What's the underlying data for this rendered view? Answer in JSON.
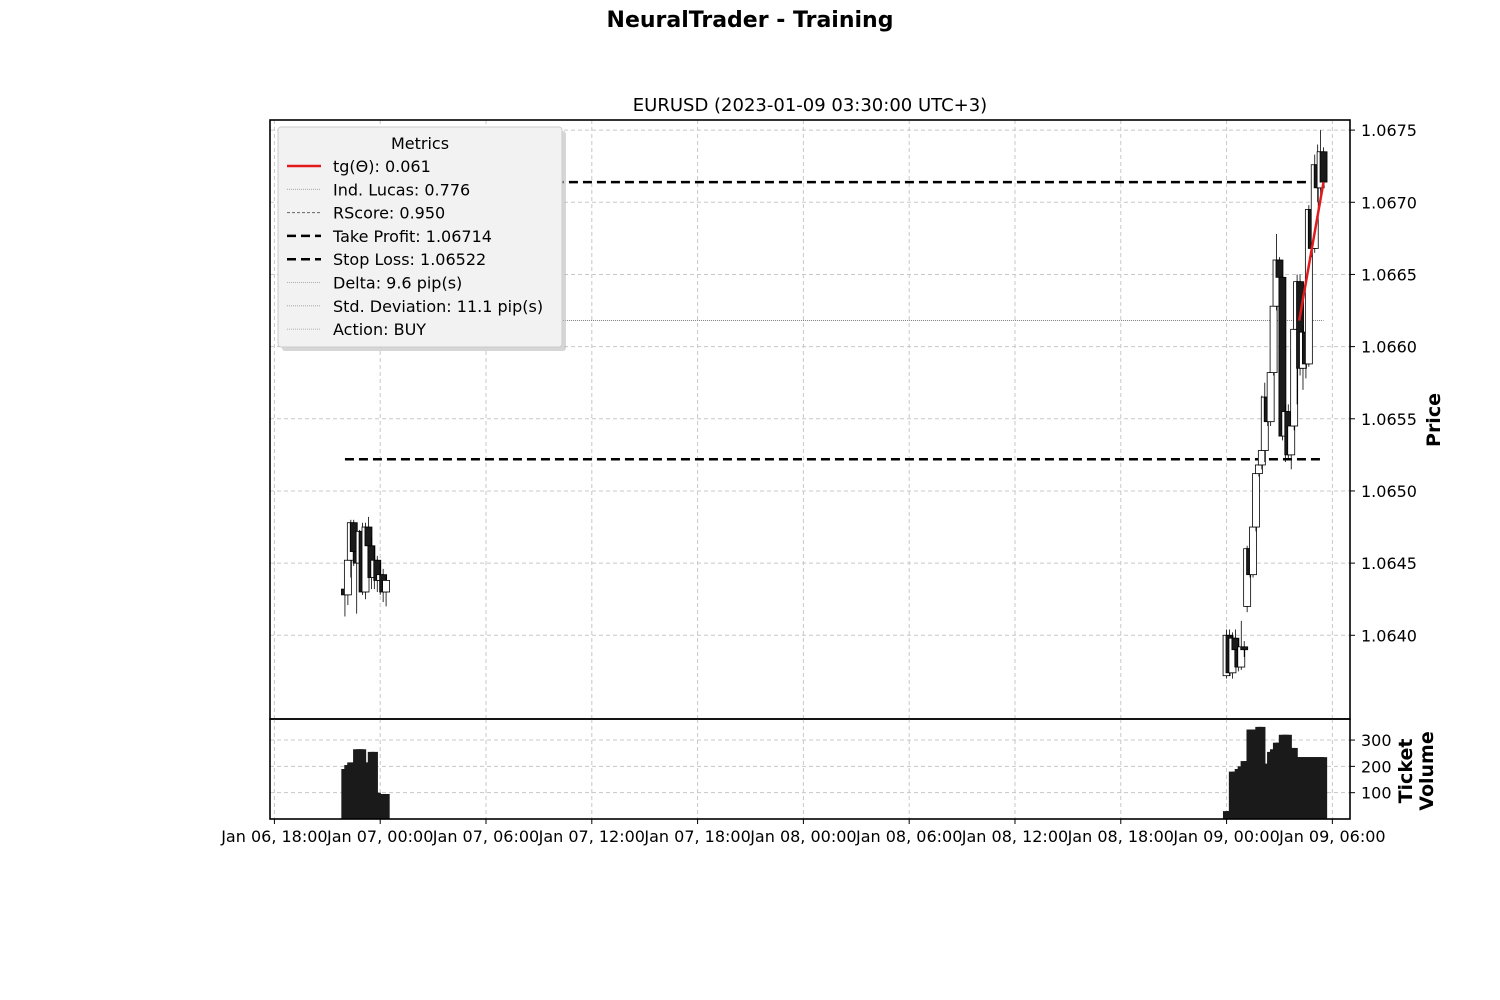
{
  "figure": {
    "suptitle": "NeuralTrader - Training",
    "title": "EURUSD (2023-01-09 03:30:00 UTC+3)"
  },
  "legend": {
    "title": "Metrics",
    "entries": [
      {
        "label": "tg(Θ): 0.061",
        "style": "solid",
        "color": "#e31a1c",
        "width": 2.5
      },
      {
        "label": "Ind. Lucas: 0.776",
        "style": "dotted",
        "color": "#999999",
        "width": 0.8
      },
      {
        "label": "RScore: 0.950",
        "style": "dashed-fine",
        "color": "#666666",
        "width": 1
      },
      {
        "label": "Take Profit: 1.06714",
        "style": "dashed",
        "color": "#000000",
        "width": 2.5
      },
      {
        "label": "Stop Loss: 1.06522",
        "style": "dashed",
        "color": "#000000",
        "width": 2.5
      },
      {
        "label": "Delta: 9.6 pip(s)",
        "style": "dotted",
        "color": "#999999",
        "width": 0.8
      },
      {
        "label": "Std. Deviation: 11.1 pip(s)",
        "style": "dotted",
        "color": "#999999",
        "width": 0.8
      },
      {
        "label": "Action: BUY",
        "style": "dotted",
        "color": "#999999",
        "width": 0.8
      }
    ]
  },
  "chart_data": [
    {
      "type": "candlestick",
      "ylabel": "Price",
      "xlim": [
        "2023-01-06 17:45",
        "2023-01-09 07:00"
      ],
      "ylim": [
        1.06342,
        1.06757
      ],
      "yticks": [
        "1.0640",
        "1.0645",
        "1.0650",
        "1.0655",
        "1.0660",
        "1.0665",
        "1.0670",
        "1.0675"
      ],
      "grid": true,
      "colors": {
        "up": "#ffffff",
        "down": "#1a1a1a",
        "edge": "#000000"
      },
      "hlines": [
        {
          "name": "Take Profit",
          "value": 1.06714,
          "style": "dashed",
          "from": "2023-01-06 22:00",
          "to": "2023-01-09 05:30"
        },
        {
          "name": "Stop Loss",
          "value": 1.06522,
          "style": "dashed",
          "from": "2023-01-06 22:00",
          "to": "2023-01-09 05:30"
        },
        {
          "name": "Delta",
          "value": 1.06618,
          "style": "dotted",
          "from": "2023-01-06 22:00",
          "to": "2023-01-09 05:30"
        }
      ],
      "trend_line": {
        "name": "tg(Θ)",
        "color": "#e31a1c",
        "points": [
          [
            "2023-01-09 04:07",
            1.06618
          ],
          [
            "2023-01-09 05:30",
            1.06714
          ]
        ]
      },
      "candles": [
        [
          "2023-01-06 22:00",
          1.06432,
          1.06448,
          1.06413,
          1.06428
        ],
        [
          "2023-01-06 22:10",
          1.06428,
          1.06462,
          1.06421,
          1.06452
        ],
        [
          "2023-01-06 22:20",
          1.06452,
          1.0648,
          1.0644,
          1.06478
        ],
        [
          "2023-01-06 22:30",
          1.06478,
          1.0648,
          1.06448,
          1.06458
        ],
        [
          "2023-01-06 22:40",
          1.06458,
          1.0647,
          1.06415,
          1.0645
        ],
        [
          "2023-01-06 22:50",
          1.0645,
          1.06473,
          1.06444,
          1.06472
        ],
        [
          "2023-01-06 23:00",
          1.06472,
          1.06478,
          1.06428,
          1.0643
        ],
        [
          "2023-01-06 23:10",
          1.0643,
          1.06478,
          1.06425,
          1.06475
        ],
        [
          "2023-01-06 23:20",
          1.06475,
          1.06482,
          1.06455,
          1.06462
        ],
        [
          "2023-01-06 23:30",
          1.06462,
          1.06468,
          1.06432,
          1.0644
        ],
        [
          "2023-01-06 23:40",
          1.0644,
          1.06462,
          1.06432,
          1.06452
        ],
        [
          "2023-01-06 23:50",
          1.06452,
          1.06455,
          1.0643,
          1.06438
        ],
        [
          "2023-01-07 00:00",
          1.06438,
          1.0645,
          1.06428,
          1.06442
        ],
        [
          "2023-01-07 00:10",
          1.06442,
          1.06446,
          1.06423,
          1.0643
        ],
        [
          "2023-01-07 00:20",
          1.0643,
          1.06442,
          1.0642,
          1.06438
        ],
        [
          "2023-01-09 00:00",
          1.06372,
          1.06404,
          1.0637,
          1.064
        ],
        [
          "2023-01-09 00:10",
          1.064,
          1.06404,
          1.06372,
          1.06374
        ],
        [
          "2023-01-09 00:20",
          1.06374,
          1.06402,
          1.0637,
          1.06398
        ],
        [
          "2023-01-09 00:30",
          1.06398,
          1.06404,
          1.06384,
          1.0639
        ],
        [
          "2023-01-09 00:40",
          1.0639,
          1.06398,
          1.06375,
          1.06378
        ],
        [
          "2023-01-09 00:50",
          1.06378,
          1.0641,
          1.06376,
          1.06392
        ],
        [
          "2023-01-09 01:00",
          1.06392,
          1.06396,
          1.06385,
          1.0639
        ],
        [
          "2023-01-09 01:10",
          1.0642,
          1.06462,
          1.06416,
          1.0646
        ],
        [
          "2023-01-09 01:20",
          1.0646,
          1.06464,
          1.0644,
          1.06442
        ],
        [
          "2023-01-09 01:30",
          1.06442,
          1.06482,
          1.0644,
          1.06475
        ],
        [
          "2023-01-09 01:40",
          1.06475,
          1.06515,
          1.06472,
          1.06512
        ],
        [
          "2023-01-09 01:50",
          1.06512,
          1.0652,
          1.0651,
          1.06518
        ],
        [
          "2023-01-09 02:00",
          1.06518,
          1.06566,
          1.06515,
          1.06528
        ],
        [
          "2023-01-09 02:10",
          1.06528,
          1.06575,
          1.0652,
          1.06565
        ],
        [
          "2023-01-09 02:20",
          1.06565,
          1.06568,
          1.06545,
          1.06548
        ],
        [
          "2023-01-09 02:30",
          1.06548,
          1.06585,
          1.06545,
          1.06582
        ],
        [
          "2023-01-09 02:40",
          1.06582,
          1.06632,
          1.0658,
          1.06628
        ],
        [
          "2023-01-09 02:50",
          1.06628,
          1.06678,
          1.06625,
          1.0666
        ],
        [
          "2023-01-09 03:00",
          1.0666,
          1.06662,
          1.0664,
          1.06648
        ],
        [
          "2023-01-09 03:10",
          1.06648,
          1.0665,
          1.06535,
          1.06538
        ],
        [
          "2023-01-09 03:20",
          1.06538,
          1.0656,
          1.0652,
          1.06555
        ],
        [
          "2023-01-09 03:30",
          1.06555,
          1.0656,
          1.06522,
          1.06525
        ],
        [
          "2023-01-09 03:40",
          1.06525,
          1.06548,
          1.06515,
          1.06545
        ],
        [
          "2023-01-09 03:50",
          1.06545,
          1.06615,
          1.06542,
          1.06612
        ],
        [
          "2023-01-09 04:00",
          1.06612,
          1.0665,
          1.0656,
          1.06645
        ],
        [
          "2023-01-09 04:10",
          1.06645,
          1.0665,
          1.0658,
          1.06585
        ],
        [
          "2023-01-09 04:20",
          1.06585,
          1.06615,
          1.0657,
          1.0661
        ],
        [
          "2023-01-09 04:30",
          1.0661,
          1.0662,
          1.06578,
          1.06588
        ],
        [
          "2023-01-09 04:40",
          1.06588,
          1.06698,
          1.06586,
          1.06695
        ],
        [
          "2023-01-09 04:50",
          1.06695,
          1.06706,
          1.06662,
          1.06668
        ],
        [
          "2023-01-09 05:00",
          1.06668,
          1.06733,
          1.06665,
          1.06726
        ],
        [
          "2023-01-09 05:10",
          1.06726,
          1.0674,
          1.067,
          1.0671
        ],
        [
          "2023-01-09 05:20",
          1.0671,
          1.0675,
          1.06702,
          1.06735
        ],
        [
          "2023-01-09 05:30",
          1.06735,
          1.06738,
          1.0671,
          1.06714
        ]
      ]
    },
    {
      "type": "bar",
      "ylabel": "Ticket\nVolume",
      "yticks": [
        100,
        200,
        300
      ],
      "ylim": [
        0,
        380
      ],
      "grid": true,
      "color": "#1a1a1a",
      "x": [
        "2023-01-06 22:00",
        "2023-01-06 22:10",
        "2023-01-06 22:20",
        "2023-01-06 22:30",
        "2023-01-06 22:40",
        "2023-01-06 22:50",
        "2023-01-06 23:00",
        "2023-01-06 23:10",
        "2023-01-06 23:20",
        "2023-01-06 23:30",
        "2023-01-06 23:40",
        "2023-01-06 23:50",
        "2023-01-07 00:00",
        "2023-01-07 00:10",
        "2023-01-07 00:20",
        "2023-01-09 00:00",
        "2023-01-09 00:10",
        "2023-01-09 00:20",
        "2023-01-09 00:30",
        "2023-01-09 00:40",
        "2023-01-09 00:50",
        "2023-01-09 01:00",
        "2023-01-09 01:10",
        "2023-01-09 01:20",
        "2023-01-09 01:30",
        "2023-01-09 01:40",
        "2023-01-09 01:50",
        "2023-01-09 02:00",
        "2023-01-09 02:10",
        "2023-01-09 02:20",
        "2023-01-09 02:30",
        "2023-01-09 02:40",
        "2023-01-09 02:50",
        "2023-01-09 03:00",
        "2023-01-09 03:10",
        "2023-01-09 03:20",
        "2023-01-09 03:30",
        "2023-01-09 03:40",
        "2023-01-09 03:50",
        "2023-01-09 04:00",
        "2023-01-09 04:10",
        "2023-01-09 04:20",
        "2023-01-09 04:30",
        "2023-01-09 04:40",
        "2023-01-09 04:50",
        "2023-01-09 05:00",
        "2023-01-09 05:10",
        "2023-01-09 05:20",
        "2023-01-09 05:30"
      ],
      "values": [
        190,
        205,
        215,
        215,
        265,
        265,
        265,
        215,
        215,
        255,
        255,
        100,
        85,
        95,
        95,
        30,
        30,
        180,
        180,
        190,
        200,
        220,
        220,
        340,
        340,
        340,
        350,
        350,
        210,
        210,
        255,
        265,
        290,
        290,
        320,
        320,
        320,
        270,
        270,
        235,
        235,
        235,
        235,
        235,
        235,
        235,
        235,
        235,
        235
      ]
    }
  ],
  "x_axis": {
    "ticks": [
      "Jan 06, 18:00",
      "Jan 07, 00:00",
      "Jan 07, 06:00",
      "Jan 07, 12:00",
      "Jan 07, 18:00",
      "Jan 08, 00:00",
      "Jan 08, 06:00",
      "Jan 08, 12:00",
      "Jan 08, 18:00",
      "Jan 09, 00:00",
      "Jan 09, 06:00"
    ]
  }
}
